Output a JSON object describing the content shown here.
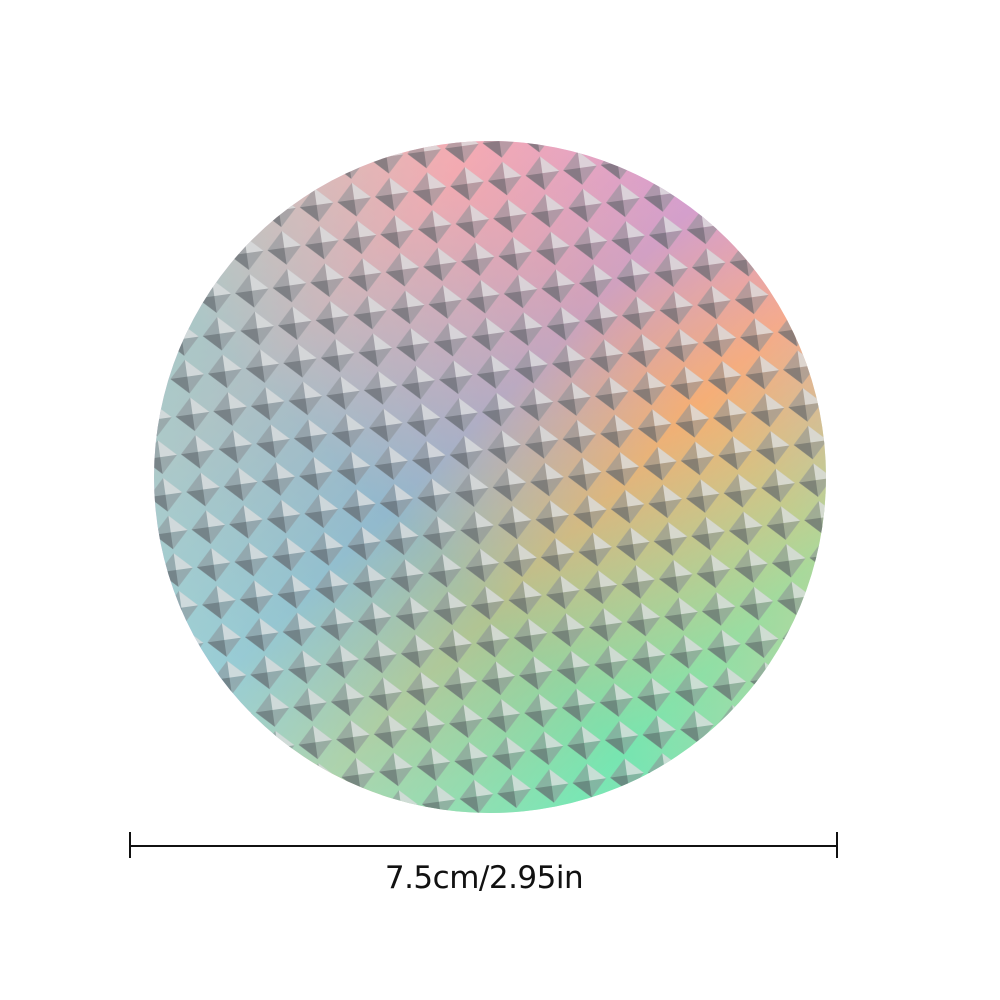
{
  "product": {
    "description_icon": "holographic-reflective-disc",
    "colors": [
      "#f2a6e6",
      "#b98cf0",
      "#7fe3c9",
      "#f5b06a",
      "#c9c9c9"
    ]
  },
  "dimension": {
    "label": "7.5cm/2.95in"
  }
}
